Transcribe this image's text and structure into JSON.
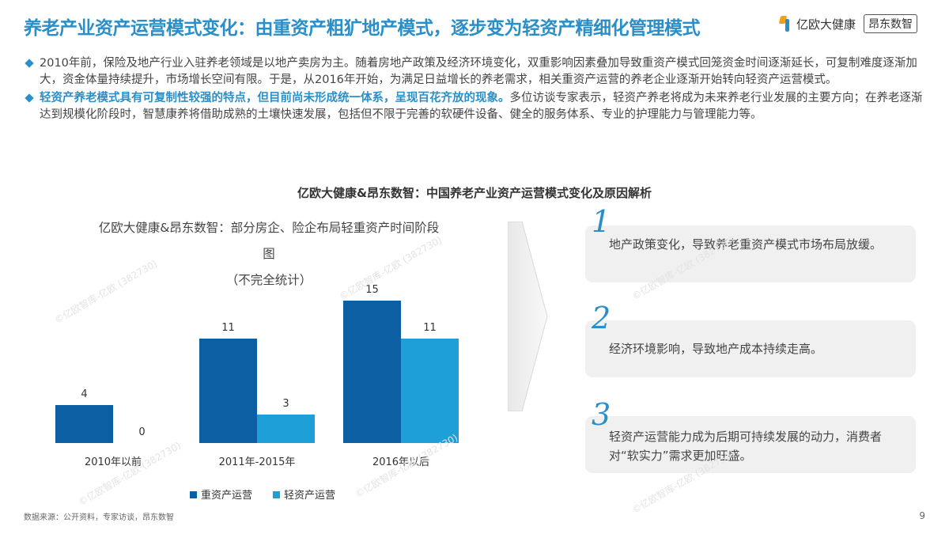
{
  "header": {
    "title": "养老产业资产运营模式变化：由重资产粗犷地产模式，逐步变为轻资产精细化管理模式",
    "logo_yiou": "亿欧大健康",
    "logo_ang": "昂东数智"
  },
  "bullets": [
    {
      "highlight": "",
      "text": "2010年前，保险及地产行业入驻养老领域是以地产卖房为主。随着房地产政策及经济环境变化，双重影响因素叠加导致重资产模式回笼资金时间逐渐延长，可复制难度逐渐加大，资金体量持续提升，市场增长空间有限。于是，从2016年开始，为满足日益增长的养老需求，相关重资产运营的养老企业逐渐开始转向轻资产运营模式。"
    },
    {
      "highlight": "轻资产养老模式具有可复制性较强的特点，但目前尚未形成统一体系，呈现百花齐放的现象。",
      "text": "多位访谈专家表示，轻资产养老将成为未来养老行业发展的主要方向；在养老逐渐达到规模化阶段时，智慧康养将借助成熟的土壤快速发展，包括但不限于完善的软硬件设备、健全的服务体系、专业的护理能力与管理能力等。"
    }
  ],
  "section_title": "亿欧大健康&昂东数智：中国养老产业资产运营模式变化及原因解析",
  "chart_title_lines": [
    "亿欧大健康&昂东数智：部分房企、险企布局轻重资产时间阶段",
    "图",
    "（不完全统计）"
  ],
  "chart_data": {
    "type": "bar",
    "title": "亿欧大健康&昂东数智：部分房企、险企布局轻重资产时间阶段图（不完全统计）",
    "categories": [
      "2010年以前",
      "2011年-2015年",
      "2016年以后"
    ],
    "series": [
      {
        "name": "重资产运营",
        "values": [
          4,
          11,
          15
        ],
        "color": "#0d5fa3"
      },
      {
        "name": "轻资产运营",
        "values": [
          0,
          3,
          11
        ],
        "color": "#1e9fd8"
      }
    ],
    "ylim": [
      0,
      15
    ],
    "legend": "bottom",
    "grid": false
  },
  "reasons": [
    {
      "num": "1",
      "text": "地产政策变化，导致养老重资产模式市场布局放缓。"
    },
    {
      "num": "2",
      "text": "经济环境影响，导致地产成本持续走高。"
    },
    {
      "num": "3",
      "text": "轻资产运营能力成为后期可持续发展的动力，消费者对“软实力”需求更加旺盛。"
    }
  ],
  "footer": {
    "source": "数据来源：公开资料，专家访谈，昂东数智",
    "page": "9"
  },
  "watermark": "©亿欧智库-亿欧 (382730)"
}
